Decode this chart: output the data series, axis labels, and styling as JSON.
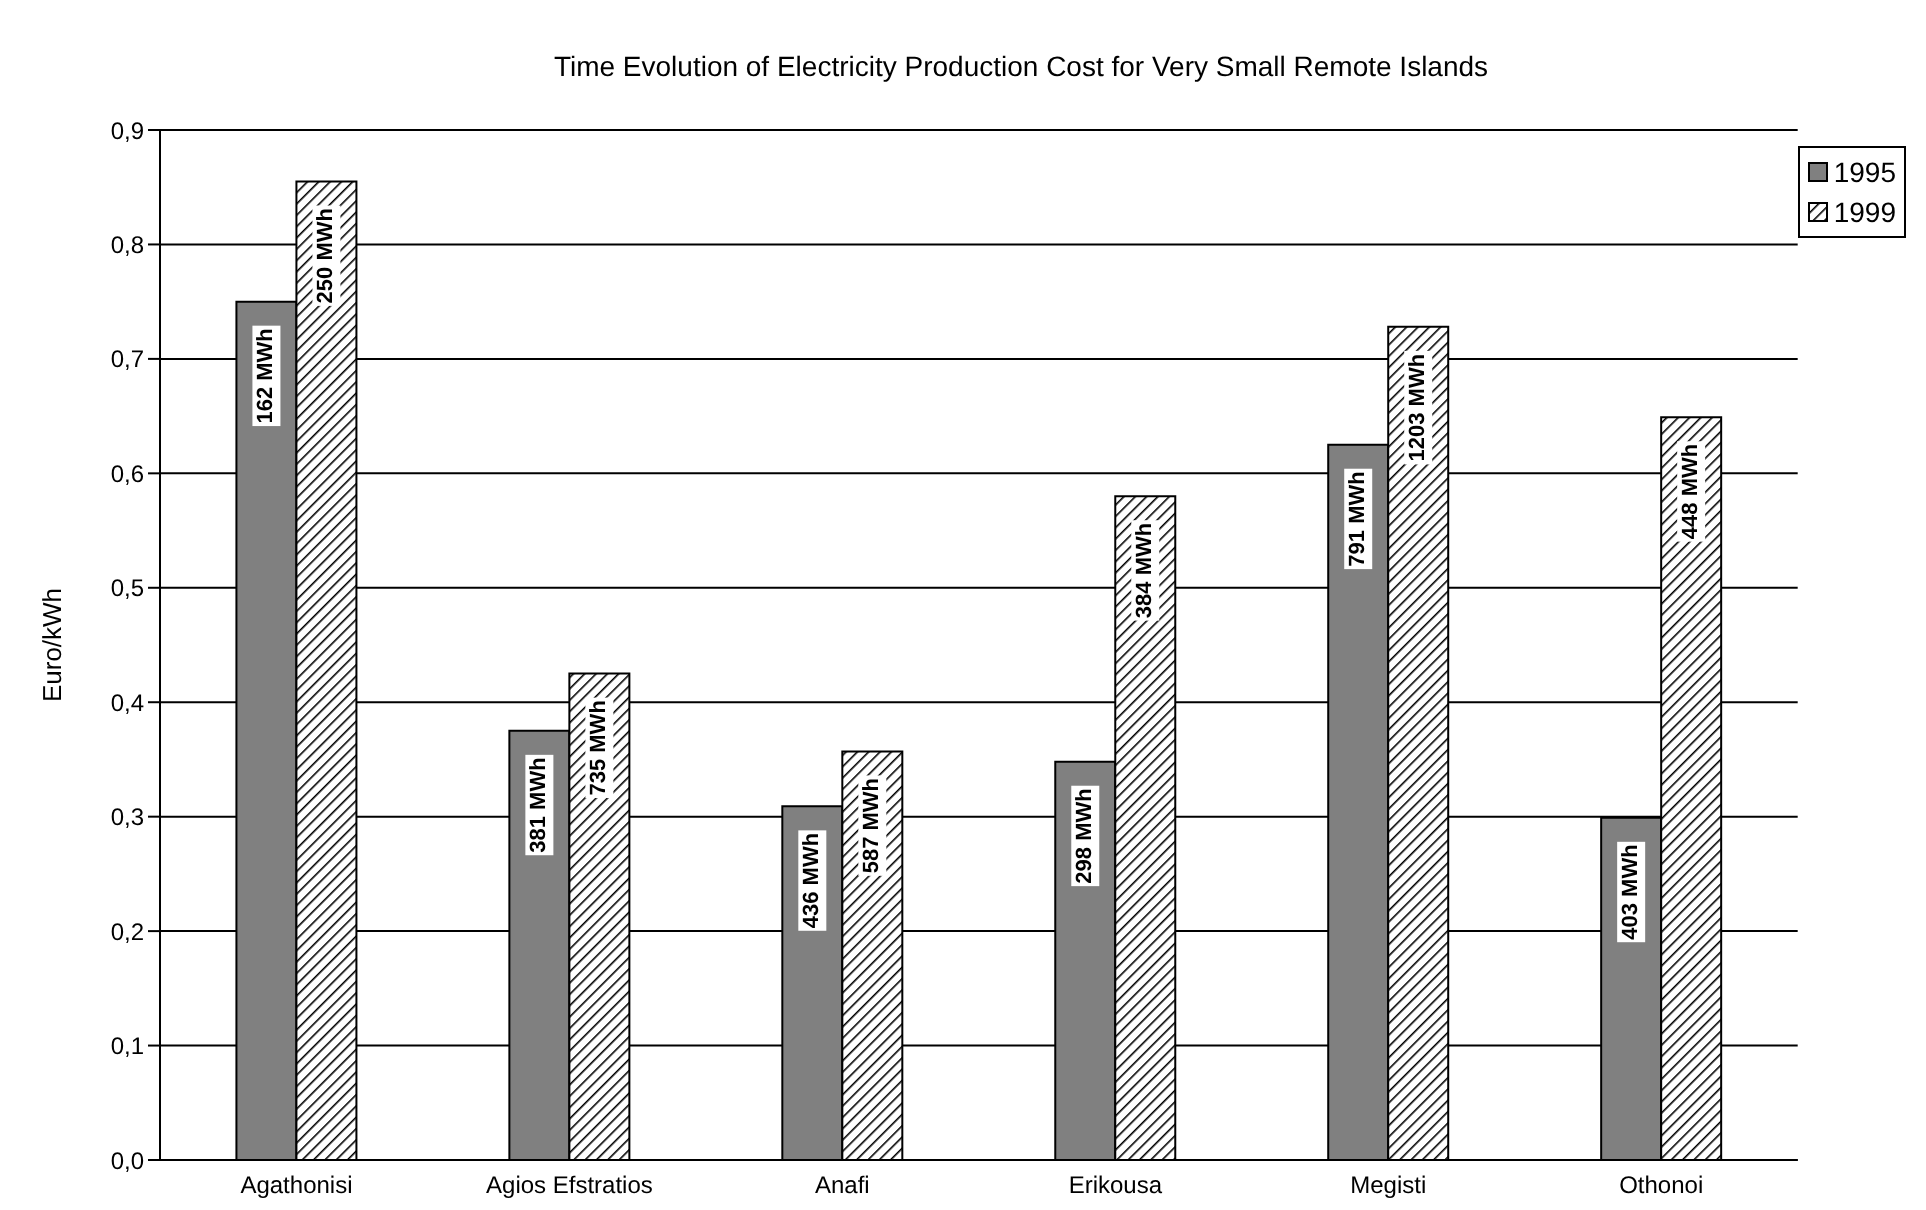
{
  "chart_data": {
    "type": "bar",
    "title": "Time Evolution of Electricity Production Cost for Very Small Remote Islands",
    "ylabel": "Euro/kWh",
    "categories": [
      "Agathonisi",
      "Agios Efstratios",
      "Anafi",
      "Erikousa",
      "Megisti",
      "Othonoi"
    ],
    "series": [
      {
        "name": "1995",
        "color": "#808080",
        "values": [
          0.75,
          0.375,
          0.309,
          0.348,
          0.625,
          0.299
        ]
      },
      {
        "name": "1999",
        "color": "#000000",
        "values": [
          0.855,
          0.425,
          0.357,
          0.58,
          0.728,
          0.649
        ]
      }
    ],
    "annotations": [
      {
        "text": "162 MWh",
        "x": "Agathonisi",
        "y": 0.75
      },
      {
        "text": "250 MWh",
        "x": "Agathonisi",
        "y": 0.855
      },
      {
        "text": "381 MWh",
        "x": "Agios Efstratios",
        "y": 0.375
      },
      {
        "text": "735 MWh",
        "x": "Agios Efstratios",
        "y": 0.425
      },
      {
        "text": "436 MWh",
        "x": "Anafi",
        "y": 0.309
      },
      {
        "text": "587 MWh",
        "x": "Anafi",
        "y": 0.357
      },
      {
        "text": "298 MWh",
        "x": "Erikousa",
        "y": 0.348
      },
      {
        "text": "384 MWh",
        "x": "Erikousa",
        "y": 0.58
      },
      {
        "text": "791 MWh",
        "x": "Megisti",
        "y": 0.625
      },
      {
        "text": "1203 MWh",
        "x": "Megisti",
        "y": 0.728
      },
      {
        "text": "403 MWh",
        "x": "Othonoi",
        "y": 0.299
      },
      {
        "text": "448 MWh",
        "x": "Othonoi",
        "y": 0.649
      }
    ],
    "ylim": [
      0,
      0.9
    ],
    "yticks": [
      {
        "value": 0,
        "label": "0,0"
      },
      {
        "value": 0.1,
        "label": "0,1"
      },
      {
        "value": 0.2,
        "label": "0,2"
      },
      {
        "value": 0.3,
        "label": "0,3"
      },
      {
        "value": 0.4,
        "label": "0,4"
      },
      {
        "value": 0.5,
        "label": "0,5"
      },
      {
        "value": 0.6,
        "label": "0,6"
      },
      {
        "value": 0.7,
        "label": "0,7"
      },
      {
        "value": 0.8,
        "label": "0,8"
      },
      {
        "value": 0.9,
        "label": "0,9"
      }
    ],
    "grid": "y",
    "legend": "top right"
  }
}
